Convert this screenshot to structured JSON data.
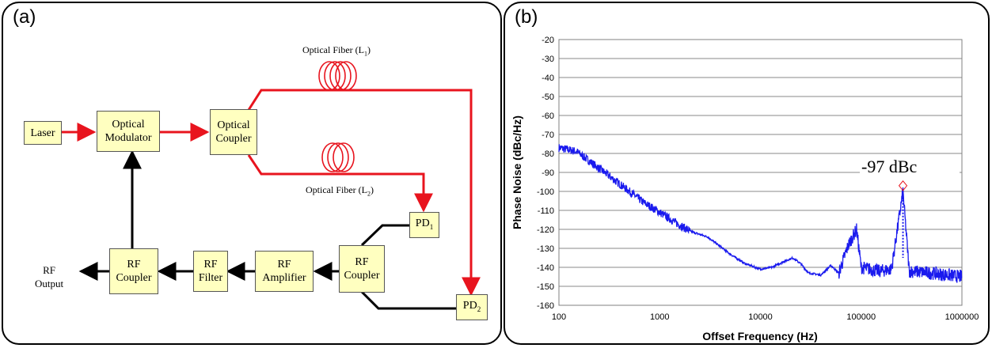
{
  "panel_a": {
    "label": "(a)",
    "boxes": {
      "laser": "Laser",
      "optical_modulator": [
        "Optical",
        "Modulator"
      ],
      "optical_coupler": [
        "Optical",
        "Coupler"
      ],
      "pd1": "PD",
      "pd1_sub": "1",
      "pd2": "PD",
      "pd2_sub": "2",
      "rf_coupler_right": [
        "RF",
        "Coupler"
      ],
      "rf_amplifier": [
        "RF",
        "Amplifier"
      ],
      "rf_filter": [
        "RF",
        "Filter"
      ],
      "rf_coupler_left": [
        "RF",
        "Coupler"
      ]
    },
    "labels": {
      "fiber_l1": "Optical Fiber (L",
      "fiber_l1_sub": "1",
      "fiber_l1_end": ")",
      "fiber_l2": "Optical Fiber (L",
      "fiber_l2_sub": "2",
      "fiber_l2_end": ")",
      "rf_output": [
        "RF",
        "Output"
      ]
    },
    "colors": {
      "optical_path": "#e8141e",
      "electrical_path": "#000000",
      "box_fill": "#ffffc0"
    }
  },
  "panel_b": {
    "label": "(b)",
    "annotation": "-97 dBc",
    "chart_data": {
      "type": "line",
      "title": "",
      "xlabel": "Offset Frequency (Hz)",
      "ylabel": "Phase Noise (dBc/Hz)",
      "xscale": "log",
      "xlim": [
        100,
        1000000
      ],
      "ylim": [
        -160,
        -20
      ],
      "x_ticks": [
        "100",
        "1000",
        "10000",
        "100000",
        "1000000"
      ],
      "y_ticks": [
        "-20",
        "-30",
        "-40",
        "-50",
        "-60",
        "-70",
        "-80",
        "-90",
        "-100",
        "-110",
        "-120",
        "-130",
        "-140",
        "-150",
        "-160"
      ],
      "grid": "horizontal",
      "series_color": "#1a1aee",
      "series": [
        {
          "x": [
            100,
            150,
            200,
            300,
            500,
            700,
            1000,
            1500,
            2000,
            3000,
            5000,
            7000,
            10000,
            13000,
            17000,
            21000,
            25000,
            30000,
            40000,
            50000,
            60000,
            75000,
            90000,
            100000,
            150000,
            200000,
            260000,
            300000,
            500000,
            700000,
            1000000
          ],
          "y": [
            -77,
            -79,
            -84,
            -91,
            -100,
            -106,
            -111,
            -117,
            -121,
            -124,
            -133,
            -138,
            -141,
            -140,
            -137,
            -135,
            -138,
            -143,
            -144,
            -139,
            -143,
            -128,
            -120,
            -140,
            -142,
            -141,
            -100,
            -142,
            -143,
            -144,
            -145
          ]
        }
      ],
      "marker": {
        "x": 260000,
        "y": -97,
        "label": "-97 dBc"
      }
    }
  }
}
